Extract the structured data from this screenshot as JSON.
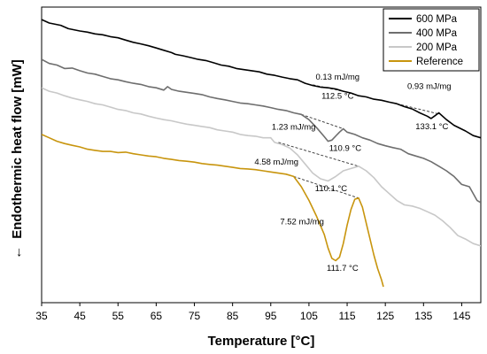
{
  "chart_data": {
    "type": "line",
    "xlabel": "Temperature [°C]",
    "ylabel": "Endothermic heat flow [mW]",
    "ylabel_arrow": "←",
    "xlim": [
      35,
      150
    ],
    "x_ticks": [
      35,
      45,
      55,
      65,
      75,
      85,
      95,
      105,
      115,
      125,
      135,
      145
    ],
    "grid": false,
    "y_tick_labels_shown": false,
    "legend_position": "top-right",
    "series": [
      {
        "name": "600 MPa",
        "color": "#000000",
        "points": [
          [
            35,
            10.95
          ],
          [
            37,
            10.8
          ],
          [
            40,
            10.7
          ],
          [
            42,
            10.55
          ],
          [
            45,
            10.45
          ],
          [
            47,
            10.4
          ],
          [
            49,
            10.32
          ],
          [
            51,
            10.28
          ],
          [
            53,
            10.2
          ],
          [
            55,
            10.15
          ],
          [
            57,
            10.05
          ],
          [
            59,
            9.95
          ],
          [
            61,
            9.88
          ],
          [
            63,
            9.8
          ],
          [
            65,
            9.7
          ],
          [
            67,
            9.6
          ],
          [
            69,
            9.5
          ],
          [
            70,
            9.42
          ],
          [
            72,
            9.36
          ],
          [
            74,
            9.28
          ],
          [
            76,
            9.2
          ],
          [
            78,
            9.15
          ],
          [
            80,
            9.05
          ],
          [
            82,
            8.95
          ],
          [
            84,
            8.9
          ],
          [
            86,
            8.8
          ],
          [
            88,
            8.75
          ],
          [
            90,
            8.7
          ],
          [
            92,
            8.65
          ],
          [
            94,
            8.55
          ],
          [
            96,
            8.5
          ],
          [
            98,
            8.42
          ],
          [
            100,
            8.35
          ],
          [
            102,
            8.3
          ],
          [
            104,
            8.15
          ],
          [
            106,
            8.05
          ],
          [
            108,
            7.98
          ],
          [
            110,
            7.95
          ],
          [
            112,
            7.9
          ],
          [
            114,
            7.8
          ],
          [
            116,
            7.72
          ],
          [
            118,
            7.6
          ],
          [
            120,
            7.55
          ],
          [
            122,
            7.45
          ],
          [
            124,
            7.4
          ],
          [
            126,
            7.32
          ],
          [
            128,
            7.25
          ],
          [
            130,
            7.12
          ],
          [
            132,
            7.02
          ],
          [
            134,
            6.85
          ],
          [
            136,
            6.7
          ],
          [
            137,
            6.6
          ],
          [
            138,
            6.72
          ],
          [
            139,
            6.85
          ],
          [
            141,
            6.55
          ],
          [
            143,
            6.3
          ],
          [
            146,
            6.05
          ],
          [
            148,
            5.85
          ],
          [
            150,
            5.75
          ]
        ]
      },
      {
        "name": "400 MPa",
        "color": "#6e6e6e",
        "points": [
          [
            35,
            9.2
          ],
          [
            37,
            9.02
          ],
          [
            39,
            8.95
          ],
          [
            41,
            8.8
          ],
          [
            43,
            8.82
          ],
          [
            45,
            8.7
          ],
          [
            47,
            8.6
          ],
          [
            49,
            8.55
          ],
          [
            51,
            8.45
          ],
          [
            53,
            8.35
          ],
          [
            55,
            8.3
          ],
          [
            57,
            8.22
          ],
          [
            59,
            8.15
          ],
          [
            61,
            8.1
          ],
          [
            63,
            8.0
          ],
          [
            65,
            7.95
          ],
          [
            67,
            7.85
          ],
          [
            68,
            8.0
          ],
          [
            69,
            7.88
          ],
          [
            71,
            7.8
          ],
          [
            73,
            7.75
          ],
          [
            75,
            7.7
          ],
          [
            77,
            7.65
          ],
          [
            79,
            7.55
          ],
          [
            81,
            7.48
          ],
          [
            83,
            7.42
          ],
          [
            85,
            7.35
          ],
          [
            87,
            7.28
          ],
          [
            89,
            7.25
          ],
          [
            91,
            7.2
          ],
          [
            93,
            7.15
          ],
          [
            95,
            7.08
          ],
          [
            97,
            7.0
          ],
          [
            99,
            6.95
          ],
          [
            101,
            6.85
          ],
          [
            103,
            6.78
          ],
          [
            105,
            6.55
          ],
          [
            107,
            6.2
          ],
          [
            109,
            5.8
          ],
          [
            110,
            5.6
          ],
          [
            111,
            5.65
          ],
          [
            113,
            6.0
          ],
          [
            114,
            6.15
          ],
          [
            115,
            6.0
          ],
          [
            117,
            5.9
          ],
          [
            119,
            5.75
          ],
          [
            121,
            5.65
          ],
          [
            123,
            5.5
          ],
          [
            125,
            5.4
          ],
          [
            127,
            5.32
          ],
          [
            129,
            5.25
          ],
          [
            131,
            5.05
          ],
          [
            133,
            4.95
          ],
          [
            135,
            4.85
          ],
          [
            137,
            4.7
          ],
          [
            139,
            4.5
          ],
          [
            141,
            4.3
          ],
          [
            143,
            4.05
          ],
          [
            145,
            3.7
          ],
          [
            147,
            3.6
          ],
          [
            149,
            3.0
          ],
          [
            150,
            2.9
          ]
        ]
      },
      {
        "name": "200 MPa",
        "color": "#c8c8c8",
        "points": [
          [
            35,
            7.95
          ],
          [
            37,
            7.8
          ],
          [
            39,
            7.72
          ],
          [
            41,
            7.6
          ],
          [
            43,
            7.5
          ],
          [
            45,
            7.42
          ],
          [
            47,
            7.35
          ],
          [
            49,
            7.25
          ],
          [
            51,
            7.2
          ],
          [
            53,
            7.1
          ],
          [
            55,
            7.0
          ],
          [
            57,
            6.95
          ],
          [
            59,
            6.85
          ],
          [
            61,
            6.8
          ],
          [
            63,
            6.7
          ],
          [
            65,
            6.62
          ],
          [
            67,
            6.55
          ],
          [
            69,
            6.5
          ],
          [
            71,
            6.42
          ],
          [
            73,
            6.35
          ],
          [
            75,
            6.3
          ],
          [
            77,
            6.25
          ],
          [
            79,
            6.2
          ],
          [
            81,
            6.1
          ],
          [
            83,
            6.05
          ],
          [
            85,
            6.0
          ],
          [
            87,
            5.9
          ],
          [
            89,
            5.85
          ],
          [
            91,
            5.82
          ],
          [
            93,
            5.75
          ],
          [
            95,
            5.75
          ],
          [
            96,
            5.55
          ],
          [
            98,
            5.45
          ],
          [
            100,
            5.3
          ],
          [
            102,
            5.0
          ],
          [
            104,
            4.6
          ],
          [
            106,
            4.2
          ],
          [
            108,
            3.95
          ],
          [
            110,
            3.85
          ],
          [
            112,
            4.05
          ],
          [
            114,
            4.3
          ],
          [
            116,
            4.4
          ],
          [
            118,
            4.5
          ],
          [
            120,
            4.3
          ],
          [
            122,
            4.0
          ],
          [
            124,
            3.6
          ],
          [
            126,
            3.3
          ],
          [
            128,
            3.0
          ],
          [
            130,
            2.8
          ],
          [
            132,
            2.75
          ],
          [
            134,
            2.65
          ],
          [
            136,
            2.5
          ],
          [
            138,
            2.35
          ],
          [
            140,
            2.1
          ],
          [
            142,
            1.8
          ],
          [
            144,
            1.45
          ],
          [
            146,
            1.3
          ],
          [
            148,
            1.1
          ],
          [
            150,
            1.0
          ]
        ]
      },
      {
        "name": "Reference",
        "color": "#c8950e",
        "points": [
          [
            35,
            5.9
          ],
          [
            37,
            5.75
          ],
          [
            39,
            5.6
          ],
          [
            41,
            5.5
          ],
          [
            43,
            5.42
          ],
          [
            45,
            5.35
          ],
          [
            47,
            5.25
          ],
          [
            49,
            5.2
          ],
          [
            51,
            5.15
          ],
          [
            53,
            5.15
          ],
          [
            55,
            5.1
          ],
          [
            57,
            5.12
          ],
          [
            59,
            5.05
          ],
          [
            61,
            5.0
          ],
          [
            63,
            4.95
          ],
          [
            65,
            4.92
          ],
          [
            67,
            4.85
          ],
          [
            69,
            4.8
          ],
          [
            71,
            4.75
          ],
          [
            73,
            4.72
          ],
          [
            75,
            4.68
          ],
          [
            77,
            4.62
          ],
          [
            79,
            4.58
          ],
          [
            81,
            4.55
          ],
          [
            83,
            4.5
          ],
          [
            85,
            4.45
          ],
          [
            87,
            4.4
          ],
          [
            89,
            4.38
          ],
          [
            91,
            4.35
          ],
          [
            93,
            4.3
          ],
          [
            95,
            4.25
          ],
          [
            97,
            4.2
          ],
          [
            99,
            4.15
          ],
          [
            101,
            4.05
          ],
          [
            103,
            3.6
          ],
          [
            105,
            3.0
          ],
          [
            107,
            2.3
          ],
          [
            109,
            1.5
          ],
          [
            110,
            0.9
          ],
          [
            111,
            0.45
          ],
          [
            112,
            0.35
          ],
          [
            113,
            0.5
          ],
          [
            114,
            1.1
          ],
          [
            115,
            1.9
          ],
          [
            116,
            2.6
          ],
          [
            117,
            3.05
          ],
          [
            118,
            3.1
          ],
          [
            119,
            2.7
          ],
          [
            120,
            2.0
          ],
          [
            121,
            1.3
          ],
          [
            122,
            0.6
          ],
          [
            123,
            0.0
          ],
          [
            124,
            -0.5
          ],
          [
            124.5,
            -0.8
          ]
        ]
      }
    ],
    "annotations": [
      {
        "text": "0.13 mJ/mg",
        "x": 112.5,
        "y": 8.3,
        "anchor": "middle"
      },
      {
        "text": "112.5 °C",
        "x": 112.5,
        "y": 7.48,
        "anchor": "middle"
      },
      {
        "text": "0.93 mJ/mg",
        "x": 136.5,
        "y": 7.9,
        "anchor": "middle"
      },
      {
        "text": "133.1 °C",
        "x": 137.2,
        "y": 6.12,
        "anchor": "middle"
      },
      {
        "text": "1.23 mJ/mg",
        "x": 101.0,
        "y": 6.1,
        "anchor": "middle"
      },
      {
        "text": "110.9 °C",
        "x": 114.5,
        "y": 5.18,
        "anchor": "middle"
      },
      {
        "text": "4.58 mJ/mg",
        "x": 96.5,
        "y": 4.58,
        "anchor": "middle"
      },
      {
        "text": "110.1 °C",
        "x": 110.8,
        "y": 3.4,
        "anchor": "middle"
      },
      {
        "text": "7.52 mJ/mg",
        "x": 103.2,
        "y": 1.95,
        "anchor": "middle"
      },
      {
        "text": "111.7 °C",
        "x": 113.8,
        "y": -0.1,
        "anchor": "middle"
      }
    ],
    "baselines": [
      {
        "x1": 106,
        "y1": 8.08,
        "x2": 116,
        "y2": 7.72
      },
      {
        "x1": 128,
        "y1": 7.25,
        "x2": 138.5,
        "y2": 6.82
      },
      {
        "x1": 103,
        "y1": 6.78,
        "x2": 114,
        "y2": 6.15
      },
      {
        "x1": 97,
        "y1": 5.55,
        "x2": 118,
        "y2": 4.5
      },
      {
        "x1": 101,
        "y1": 4.05,
        "x2": 118,
        "y2": 3.1
      }
    ]
  }
}
